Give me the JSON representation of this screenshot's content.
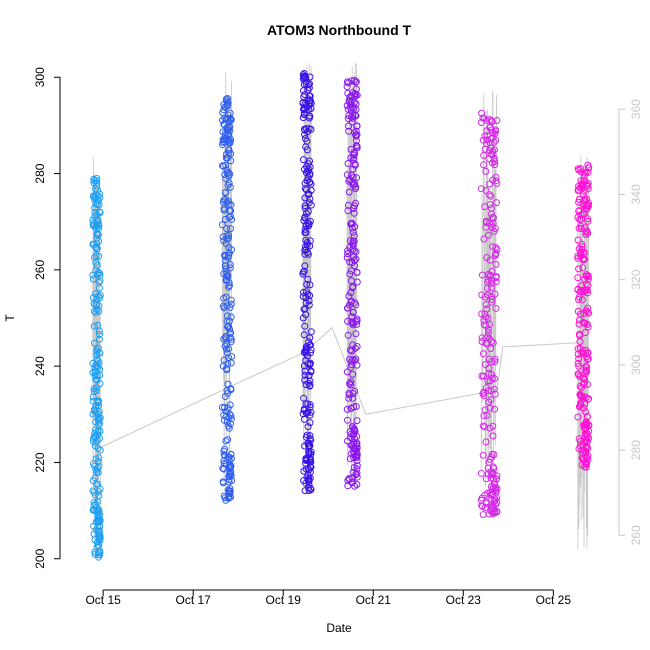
{
  "chart_data": {
    "type": "scatter",
    "title": "ATOM3 Northbound T",
    "xlabel": "Date",
    "ylabel": "T",
    "xlim": [
      "2016-10-14T01:00",
      "2016-10-26T11:00"
    ],
    "ylim": [
      196,
      304
    ],
    "x_ticks": [
      {
        "date": "2016-10-15",
        "label": "Oct 15"
      },
      {
        "date": "2016-10-17",
        "label": "Oct 17"
      },
      {
        "date": "2016-10-19",
        "label": "Oct 19"
      },
      {
        "date": "2016-10-21",
        "label": "Oct 21"
      },
      {
        "date": "2016-10-23",
        "label": "Oct 23"
      },
      {
        "date": "2016-10-25",
        "label": "Oct 25"
      }
    ],
    "y_ticks": [
      200,
      220,
      240,
      260,
      280,
      300
    ],
    "right_axis": {
      "ticks": [
        260,
        280,
        300,
        320,
        340,
        360
      ],
      "ylim": [
        250,
        372
      ],
      "color": "#c8c8c8"
    },
    "grid": false,
    "legend": "none",
    "marker": "open-circle",
    "colors": {
      "flight1": "#1e9ff2",
      "flight2": "#2f5ff0",
      "flight3": "#3a12e8",
      "flight4": "#8a18ee",
      "flight5": "#d32ae6",
      "flight6": "#ff12d6",
      "connector": "#c8c8c8",
      "axis": "#000000"
    },
    "flights": [
      {
        "start": "2016-10-14T18:30",
        "end": "2016-10-14T22:30",
        "t_min": 200,
        "t_max": 279,
        "t_mean": 223,
        "alt_min": 260,
        "alt_max": 350,
        "color_key": "flight1"
      },
      {
        "start": "2016-10-17T15:30",
        "end": "2016-10-17T20:30",
        "t_min": 212,
        "t_max": 296,
        "t_mean": 236,
        "alt_min": 270,
        "alt_max": 370,
        "color_key": "flight2"
      },
      {
        "start": "2016-10-19T10:30",
        "end": "2016-10-19T15:00",
        "t_min": 214,
        "t_max": 301,
        "t_mean": 243,
        "alt_min": 270,
        "alt_max": 372,
        "color_key": "flight3"
      },
      {
        "start": "2016-10-20T10:00",
        "end": "2016-10-20T15:30",
        "t_min": 215,
        "t_max": 300,
        "t_mean": 248,
        "alt_min": 270,
        "alt_max": 372,
        "color_key": "flight4"
      },
      {
        "start": "2016-10-23T09:30",
        "end": "2016-10-23T18:00",
        "t_min": 209,
        "t_max": 293,
        "t_mean": 244,
        "alt_min": 270,
        "alt_max": 365,
        "color_key": "flight5"
      },
      {
        "start": "2016-10-25T13:00",
        "end": "2016-10-25T19:00",
        "t_min": 219,
        "t_max": 282,
        "t_mean": 245,
        "alt_min": 255,
        "alt_max": 350,
        "color_key": "flight6"
      }
    ],
    "connector_line": [
      {
        "x": "2016-10-14T22:00",
        "y": 223
      },
      {
        "x": "2016-10-17T21:00",
        "y": 236
      },
      {
        "x": "2016-10-19T12:00",
        "y": 243
      },
      {
        "x": "2016-10-20T02:00",
        "y": 248
      },
      {
        "x": "2016-10-20T20:00",
        "y": 230
      },
      {
        "x": "2016-10-23T18:00",
        "y": 235
      },
      {
        "x": "2016-10-23T21:00",
        "y": 244
      },
      {
        "x": "2016-10-25T19:00",
        "y": 245
      }
    ]
  }
}
